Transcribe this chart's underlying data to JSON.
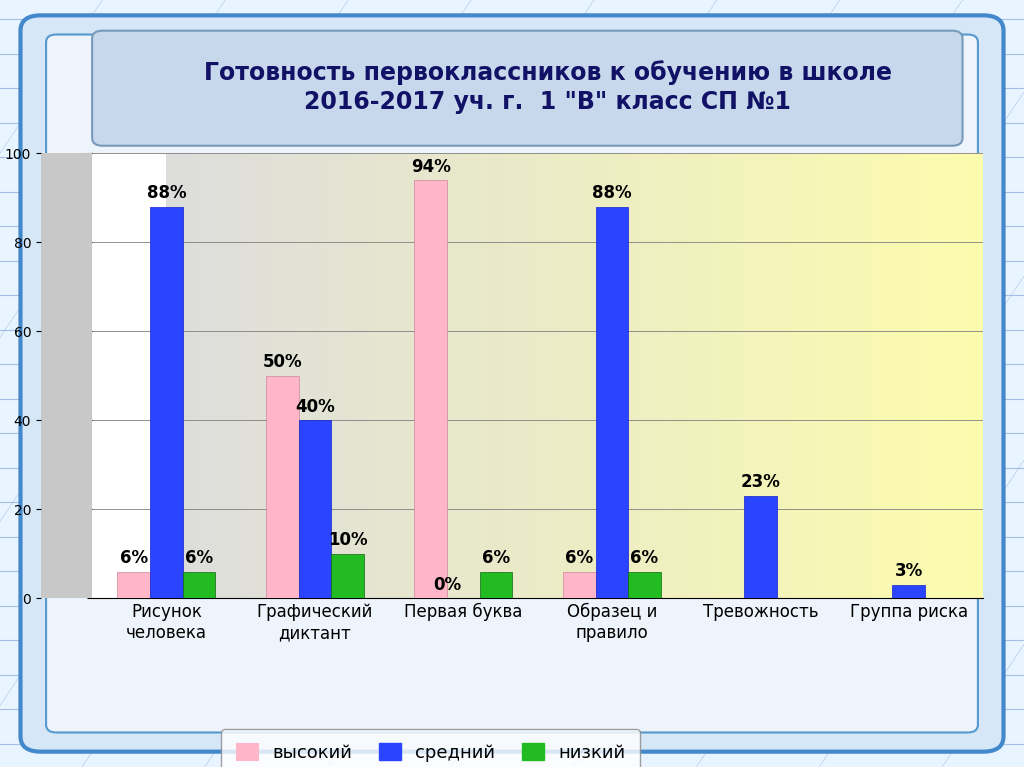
{
  "title_line1": "Готовность первоклассников к обучению в школе",
  "title_line2": "2016-2017 уч. г.  1 \"В\" класс СП №1",
  "categories": [
    "Рисунок\nчеловека",
    "Графический\nдиктант",
    "Первая буква",
    "Образец и\nправило",
    "Тревожность",
    "Группа риска"
  ],
  "high": [
    6,
    50,
    94,
    6,
    0,
    0
  ],
  "medium": [
    88,
    40,
    0,
    88,
    23,
    3
  ],
  "low": [
    6,
    10,
    6,
    6,
    0,
    0
  ],
  "high_color": "#FFB6C8",
  "medium_color": "#2B44FF",
  "low_color": "#22BB22",
  "bg_notebook": "#E8F4FF",
  "bg_chart_left": "#E8E8E8",
  "bg_chart_right": "#FFFF99",
  "bg_header": "#C8D8EC",
  "bg_legend": "#FFFFFF",
  "line_color": "#6699CC",
  "ylim": [
    0,
    100
  ],
  "yticks": [
    0,
    20,
    40,
    60,
    80,
    100
  ],
  "legend_high": "высокий",
  "legend_medium": "средний",
  "legend_low": "низкий",
  "bar_width": 0.22,
  "title_fontsize": 17,
  "tick_fontsize": 12,
  "annot_fontsize": 12,
  "legend_fontsize": 13
}
